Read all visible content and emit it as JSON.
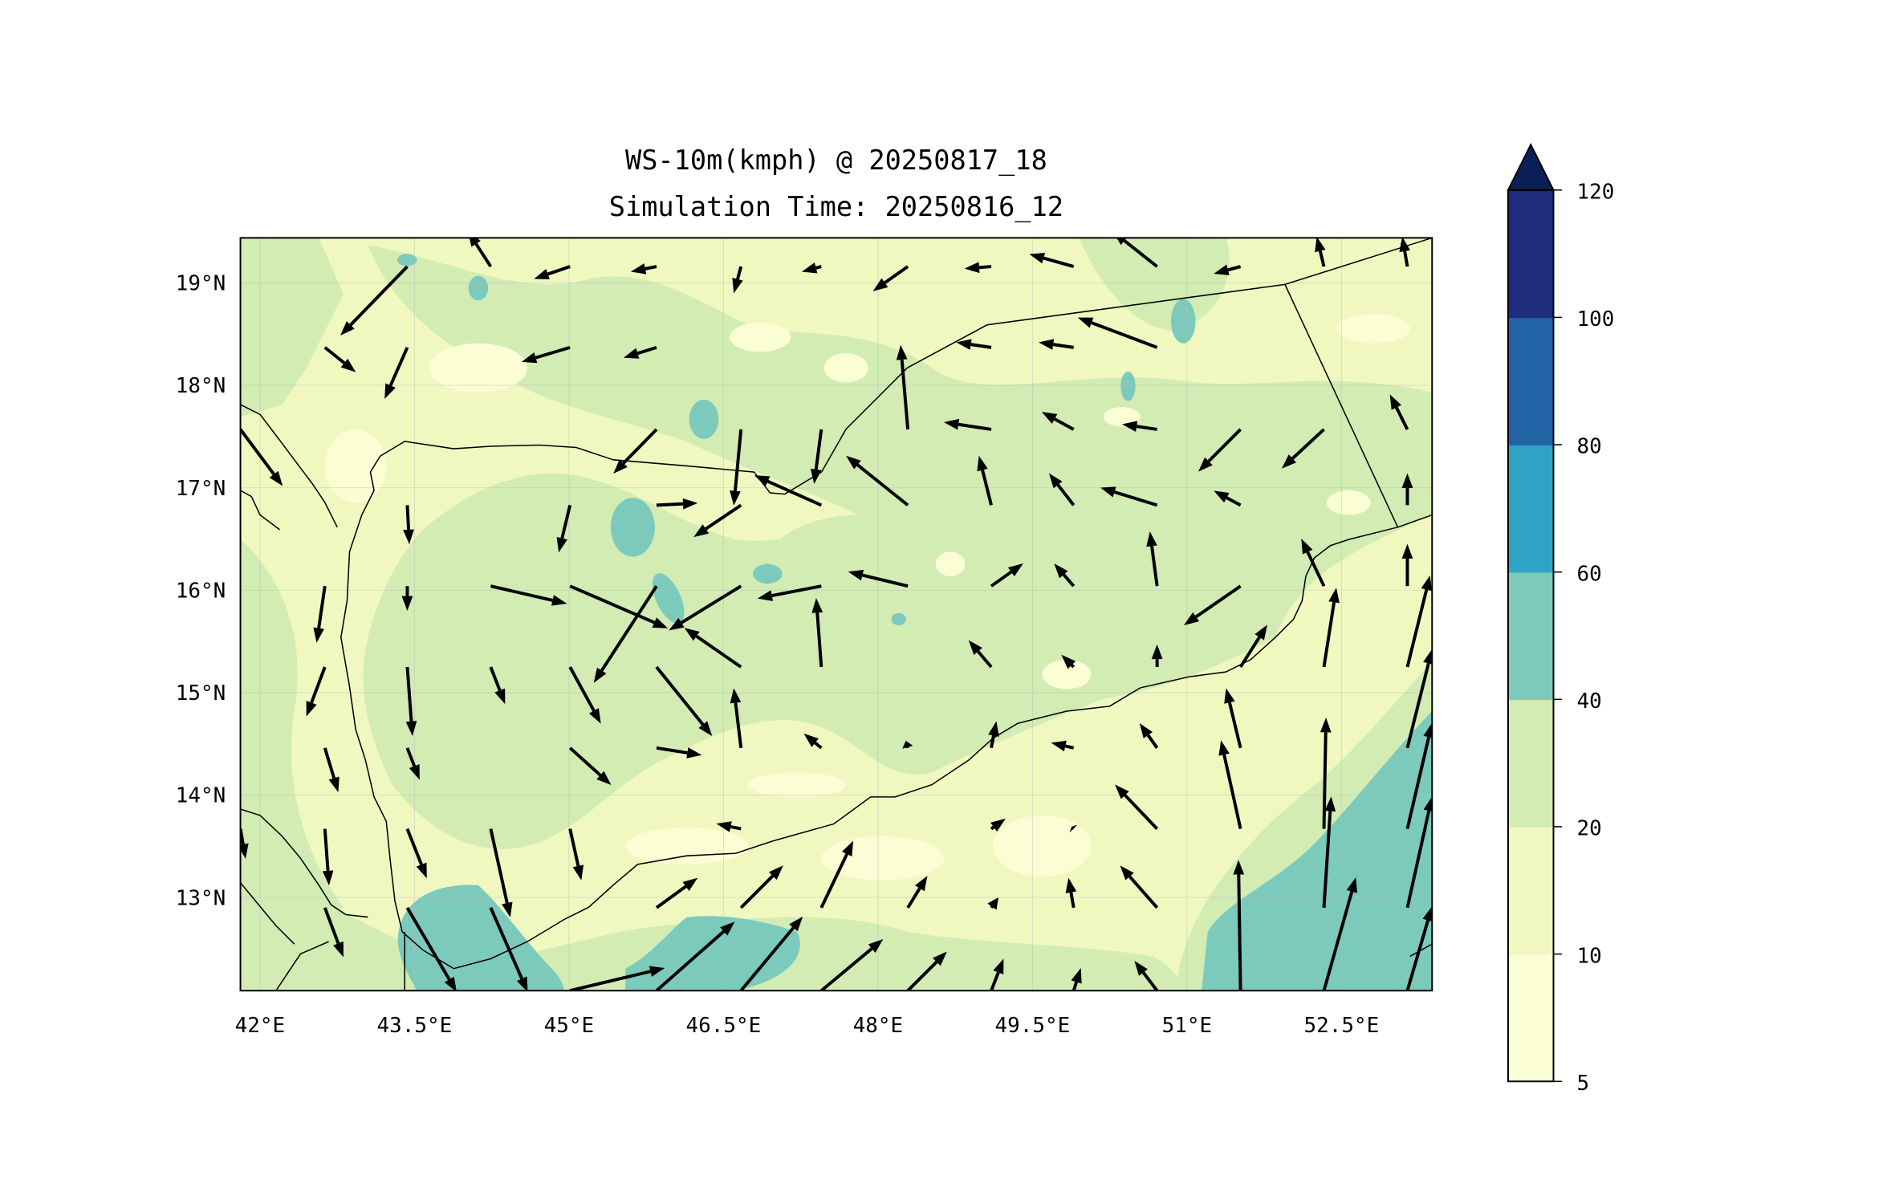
{
  "chart_data": {
    "type": "heatmap",
    "title_line1": "WS-10m(kmph) @ 20250817_18",
    "title_line2": "Simulation Time: 20250816_12",
    "variable": "WS-10m(kmph)",
    "x_range": [
      41.81,
      53.38
    ],
    "y_range": [
      12.09,
      19.44
    ],
    "x_ticks": [
      42,
      43.5,
      45,
      46.5,
      48,
      49.5,
      51,
      52.5
    ],
    "x_tick_labels": [
      "42°E",
      "43.5°E",
      "45°E",
      "46.5°E",
      "48°E",
      "49.5°E",
      "51°E",
      "52.5°E"
    ],
    "y_ticks": [
      13,
      14,
      15,
      16,
      17,
      18,
      19
    ],
    "y_tick_labels": [
      "13°N",
      "14°N",
      "15°N",
      "16°N",
      "17°N",
      "18°N",
      "19°N"
    ],
    "grid": true,
    "colorbar": {
      "placement": "right",
      "extend": "max",
      "levels": [
        5,
        10,
        20,
        40,
        60,
        80,
        100,
        120
      ],
      "tick_labels": [
        "5",
        "10",
        "20",
        "40",
        "60",
        "80",
        "100",
        "120"
      ],
      "colors": [
        "#fbfdd4",
        "#f0f8c0",
        "#d2ecb4",
        "#7ccabc",
        "#2ea3c4",
        "#2263a6",
        "#1d2c7c"
      ],
      "extend_color": "#0c1f57"
    },
    "wind_vectors_note": "[lon, lat, u, v] with u/v as arrow length in degrees",
    "wind_vectors": [
      [
        43.43,
        19.16,
        -0.65,
        -0.67
      ],
      [
        42.63,
        18.37,
        0.3,
        -0.24
      ],
      [
        43.43,
        18.37,
        -0.22,
        -0.5
      ],
      [
        41.81,
        17.57,
        0.41,
        -0.55
      ],
      [
        45.01,
        18.37,
        -0.47,
        -0.14
      ],
      [
        45.85,
        18.37,
        -0.32,
        -0.1
      ],
      [
        45.85,
        17.57,
        -0.42,
        -0.43
      ],
      [
        46.67,
        17.57,
        -0.07,
        -0.74
      ],
      [
        47.45,
        17.57,
        -0.07,
        -0.53
      ],
      [
        48.29,
        17.57,
        -0.07,
        0.82
      ],
      [
        47.45,
        16.83,
        -0.65,
        0.29
      ],
      [
        48.29,
        16.83,
        -0.6,
        0.48
      ],
      [
        49.1,
        16.83,
        -0.12,
        0.48
      ],
      [
        49.9,
        16.83,
        -0.24,
        0.31
      ],
      [
        50.71,
        16.83,
        -0.55,
        0.17
      ],
      [
        51.52,
        17.57,
        -0.41,
        -0.41
      ],
      [
        52.33,
        17.57,
        -0.41,
        -0.38
      ],
      [
        50.71,
        18.37,
        -0.77,
        0.29
      ],
      [
        49.9,
        18.37,
        -0.34,
        0.05
      ],
      [
        49.1,
        18.37,
        -0.34,
        0.05
      ],
      [
        49.1,
        17.57,
        -0.46,
        0.07
      ],
      [
        50.71,
        17.57,
        -0.34,
        0.05
      ],
      [
        49.9,
        17.57,
        -0.31,
        0.17
      ],
      [
        50.71,
        19.16,
        -0.43,
        0.34
      ],
      [
        49.9,
        19.16,
        -0.43,
        0.12
      ],
      [
        48.29,
        19.16,
        -0.34,
        -0.24
      ],
      [
        47.45,
        19.16,
        -0.19,
        -0.05
      ],
      [
        44.24,
        19.16,
        -0.22,
        0.34
      ],
      [
        45.01,
        19.16,
        -0.35,
        -0.12
      ],
      [
        45.85,
        19.16,
        -0.25,
        -0.05
      ],
      [
        46.67,
        19.16,
        -0.07,
        -0.26
      ],
      [
        49.1,
        19.16,
        -0.26,
        -0.02
      ],
      [
        51.52,
        19.16,
        -0.26,
        -0.07
      ],
      [
        52.33,
        19.16,
        -0.07,
        0.29
      ],
      [
        53.14,
        19.16,
        -0.05,
        0.29
      ],
      [
        53.14,
        17.57,
        -0.17,
        0.34
      ],
      [
        53.14,
        16.83,
        0,
        0.31
      ],
      [
        53.14,
        16.04,
        0,
        0.41
      ],
      [
        52.33,
        16.04,
        -0.22,
        0.46
      ],
      [
        51.52,
        16.83,
        -0.26,
        0.14
      ],
      [
        51.52,
        16.04,
        -0.55,
        -0.38
      ],
      [
        50.71,
        16.04,
        -0.07,
        0.53
      ],
      [
        49.9,
        16.04,
        -0.19,
        0.22
      ],
      [
        49.1,
        16.04,
        0.31,
        0.22
      ],
      [
        48.29,
        16.04,
        -0.58,
        0.14
      ],
      [
        47.45,
        16.04,
        -0.62,
        -0.12
      ],
      [
        46.67,
        16.04,
        -0.7,
        -0.43
      ],
      [
        46.67,
        15.25,
        -0.55,
        0.38
      ],
      [
        45.85,
        16.04,
        -0.61,
        -0.94
      ],
      [
        45.01,
        16.04,
        0.95,
        -0.41
      ],
      [
        44.24,
        16.04,
        0.74,
        -0.17
      ],
      [
        43.43,
        16.83,
        0.02,
        -0.38
      ],
      [
        43.43,
        16.04,
        0,
        -0.24
      ],
      [
        42.63,
        16.04,
        -0.08,
        -0.55
      ],
      [
        45.01,
        16.83,
        -0.11,
        -0.46
      ],
      [
        45.85,
        16.83,
        0.4,
        0.02
      ],
      [
        46.67,
        16.83,
        -0.46,
        -0.31
      ],
      [
        47.45,
        15.25,
        -0.05,
        0.67
      ],
      [
        49.1,
        15.25,
        -0.22,
        0.26
      ],
      [
        49.9,
        15.25,
        -0.12,
        0.12
      ],
      [
        50.71,
        15.25,
        0,
        0.22
      ],
      [
        51.52,
        15.25,
        0.26,
        0.41
      ],
      [
        52.33,
        15.25,
        0.12,
        0.77
      ],
      [
        53.14,
        15.25,
        0.22,
        0.89
      ],
      [
        51.52,
        14.46,
        -0.14,
        0.58
      ],
      [
        53.14,
        14.46,
        0.24,
        0.96
      ],
      [
        52.33,
        13.67,
        0.02,
        1.08
      ],
      [
        51.52,
        13.67,
        -0.19,
        0.86
      ],
      [
        53.14,
        13.67,
        0.24,
        1.03
      ],
      [
        51.52,
        12.09,
        -0.02,
        1.27
      ],
      [
        52.33,
        12.9,
        0.07,
        1.08
      ],
      [
        53.14,
        12.9,
        0.24,
        1.08
      ],
      [
        52.33,
        12.09,
        0.31,
        1.1
      ],
      [
        53.14,
        12.09,
        0.24,
        0.82
      ],
      [
        50.71,
        14.46,
        -0.17,
        0.24
      ],
      [
        50.71,
        13.67,
        -0.41,
        0.43
      ],
      [
        50.71,
        12.9,
        -0.36,
        0.41
      ],
      [
        50.71,
        12.09,
        -0.22,
        0.29
      ],
      [
        49.9,
        14.46,
        -0.22,
        0.05
      ],
      [
        49.9,
        13.67,
        -0.02,
        0.02
      ],
      [
        49.9,
        12.9,
        -0.05,
        0.29
      ],
      [
        49.9,
        12.09,
        0.07,
        0.22
      ],
      [
        49.1,
        14.46,
        0.05,
        0.26
      ],
      [
        49.1,
        13.67,
        0.14,
        0.1
      ],
      [
        49.1,
        12.9,
        0.07,
        0.1
      ],
      [
        49.1,
        12.09,
        0.12,
        0.31
      ],
      [
        48.29,
        14.46,
        -0.02,
        0.07
      ],
      [
        48.29,
        12.9,
        0.19,
        0.31
      ],
      [
        48.29,
        12.09,
        0.38,
        0.38
      ],
      [
        47.45,
        12.09,
        0.6,
        0.5
      ],
      [
        47.45,
        12.9,
        0.31,
        0.65
      ],
      [
        46.67,
        12.09,
        0.6,
        0.72
      ],
      [
        46.67,
        12.9,
        0.41,
        0.41
      ],
      [
        45.85,
        12.09,
        0.76,
        0.67
      ],
      [
        45.85,
        12.9,
        0.4,
        0.29
      ],
      [
        45.01,
        12.09,
        0.92,
        0.22
      ],
      [
        47.45,
        14.46,
        -0.17,
        0.14
      ],
      [
        46.67,
        13.67,
        -0.24,
        0.05
      ],
      [
        46.67,
        14.46,
        -0.07,
        0.58
      ],
      [
        45.85,
        14.46,
        0.44,
        -0.07
      ],
      [
        45.85,
        15.25,
        0.54,
        -0.67
      ],
      [
        45.01,
        15.25,
        0.3,
        -0.55
      ],
      [
        45.01,
        14.46,
        0.4,
        -0.36
      ],
      [
        45.01,
        13.67,
        0.11,
        -0.5
      ],
      [
        44.24,
        13.67,
        0.19,
        -0.86
      ],
      [
        44.24,
        15.25,
        0.14,
        -0.36
      ],
      [
        43.43,
        15.25,
        0.05,
        -0.67
      ],
      [
        43.43,
        14.46,
        0.12,
        -0.31
      ],
      [
        43.43,
        13.67,
        0.19,
        -0.48
      ],
      [
        43.43,
        12.9,
        0.48,
        -0.82
      ],
      [
        44.24,
        12.9,
        0.36,
        -0.82
      ],
      [
        42.63,
        15.25,
        -0.18,
        -0.48
      ],
      [
        42.63,
        14.46,
        0.13,
        -0.43
      ],
      [
        42.63,
        13.67,
        0.04,
        -0.55
      ],
      [
        42.63,
        12.9,
        0.18,
        -0.48
      ],
      [
        41.81,
        13.67,
        0.05,
        -0.29
      ]
    ]
  }
}
